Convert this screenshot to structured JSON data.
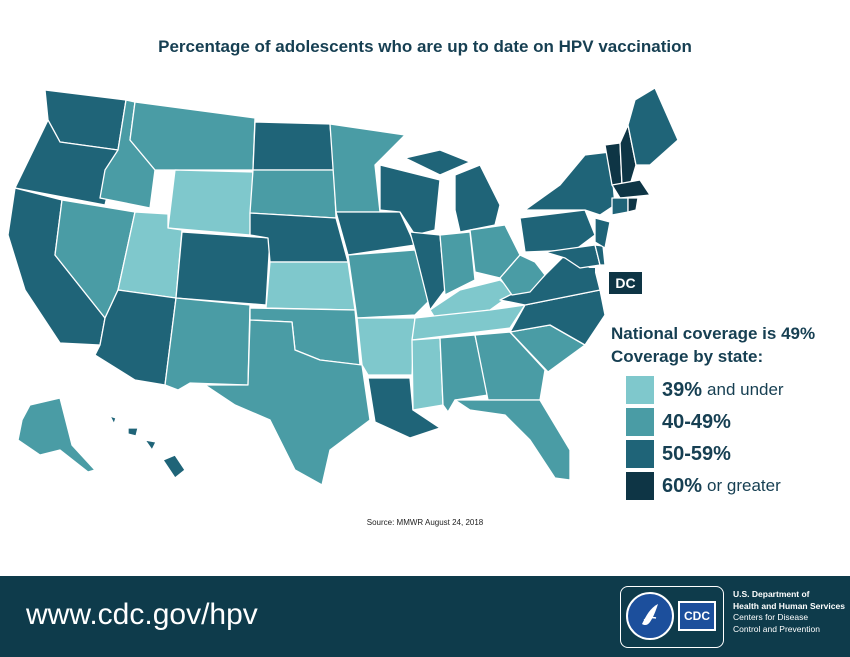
{
  "title": "Percentage of adolescents who are up to date on HPV vaccination",
  "dc_label": "DC",
  "coverage": {
    "national": "National coverage is 49%",
    "by_state": "Coverage by state:"
  },
  "legend": [
    {
      "pct": "39%",
      "suffix": "and under",
      "color": "#7fc8cc"
    },
    {
      "pct": "40-49%",
      "suffix": "",
      "color": "#4a9ca5"
    },
    {
      "pct": "50-59%",
      "suffix": "",
      "color": "#1f6478"
    },
    {
      "pct": "60%",
      "suffix": "or greater",
      "color": "#0e3545"
    }
  ],
  "source": "Source: MMWR August 24, 2018",
  "footer": {
    "url": "www.cdc.gov/hpv",
    "cdc_logo_text": "CDC",
    "agency_line1": "U.S. Department of",
    "agency_line2": "Health and Human Services",
    "agency_line3": "Centers for Disease",
    "agency_line4": "Control and Prevention"
  },
  "colors": {
    "c1": "#7fc8cc",
    "c2": "#4a9ca5",
    "c3": "#1f6478",
    "c4": "#0e3545",
    "footer_bg": "#0e3b4b"
  }
}
